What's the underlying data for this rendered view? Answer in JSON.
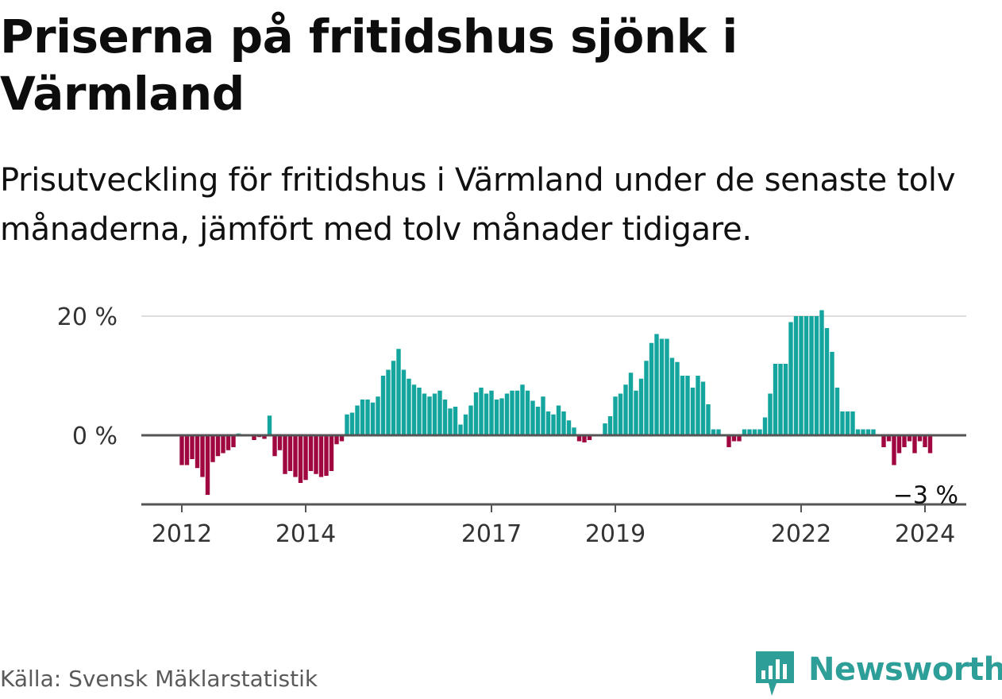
{
  "title": "Priserna på fritidshus sjönk i Värmland",
  "subtitle": "Prisutveckling för fritidshus i Värmland under de senaste tolv månaderna, jämfört med tolv månader tidigare.",
  "source": "Källa: Svensk Mäklarstatistik",
  "brand": "Newsworthy",
  "colors": {
    "positive": "#13a59e",
    "negative": "#a0063f",
    "axis": "#555555",
    "grid": "#dddddd",
    "brand": "#2d9e98"
  },
  "chart_data": {
    "type": "bar",
    "title": "Priserna på fritidshus sjönk i Värmland",
    "xlabel": "",
    "ylabel": "",
    "ylim": [
      -12,
      21
    ],
    "y_ticks": [
      {
        "value": 0,
        "label": "0 %"
      },
      {
        "value": 20,
        "label": "20 %"
      }
    ],
    "x_ticks": [
      {
        "index": 0,
        "label": "2012"
      },
      {
        "index": 24,
        "label": "2014"
      },
      {
        "index": 60,
        "label": "2017"
      },
      {
        "index": 84,
        "label": "2019"
      },
      {
        "index": 120,
        "label": "2022"
      },
      {
        "index": 144,
        "label": "2024"
      }
    ],
    "annotation": {
      "label": "−3 %",
      "value": -3
    },
    "start": "2012-01",
    "values": [
      -5,
      -5,
      -4,
      -5.5,
      -7,
      -10,
      -4.5,
      -3.5,
      -3,
      -2.5,
      -2,
      0.3,
      0,
      0,
      -0.8,
      -0.3,
      -0.6,
      3.3,
      -3.5,
      -2.5,
      -6.5,
      -6,
      -7,
      -8,
      -7.5,
      -6,
      -6.5,
      -7,
      -6.8,
      -6,
      -1.5,
      -1,
      3.5,
      3.8,
      5,
      6,
      6,
      5.5,
      6.5,
      10,
      11,
      12.5,
      14.5,
      11,
      9.5,
      8.5,
      8,
      7,
      6.5,
      7,
      7.5,
      6,
      4.5,
      4.8,
      1.8,
      3.5,
      5,
      7.2,
      8,
      7,
      7.5,
      6,
      6.2,
      7,
      7.5,
      7.5,
      8.5,
      7.5,
      5.8,
      4.8,
      6.5,
      4,
      3.5,
      5,
      4,
      2.5,
      1.3,
      -1,
      -1.2,
      -0.8,
      0,
      0,
      2,
      3.2,
      6.5,
      7,
      8.5,
      10.5,
      7.5,
      9.5,
      12.5,
      15.5,
      17,
      16.2,
      16.2,
      13,
      12.3,
      10,
      10,
      8,
      10,
      9,
      5.2,
      1,
      1,
      0,
      -2,
      -1,
      -1,
      1,
      1,
      1,
      1,
      3,
      7,
      12,
      12,
      12,
      19,
      20,
      20,
      20,
      20,
      20,
      21,
      18,
      14,
      8,
      4,
      4,
      4,
      1,
      1,
      1,
      1,
      0,
      -2,
      -1,
      -5,
      -3,
      -2,
      -1,
      -3,
      -1,
      -2,
      -3
    ]
  }
}
